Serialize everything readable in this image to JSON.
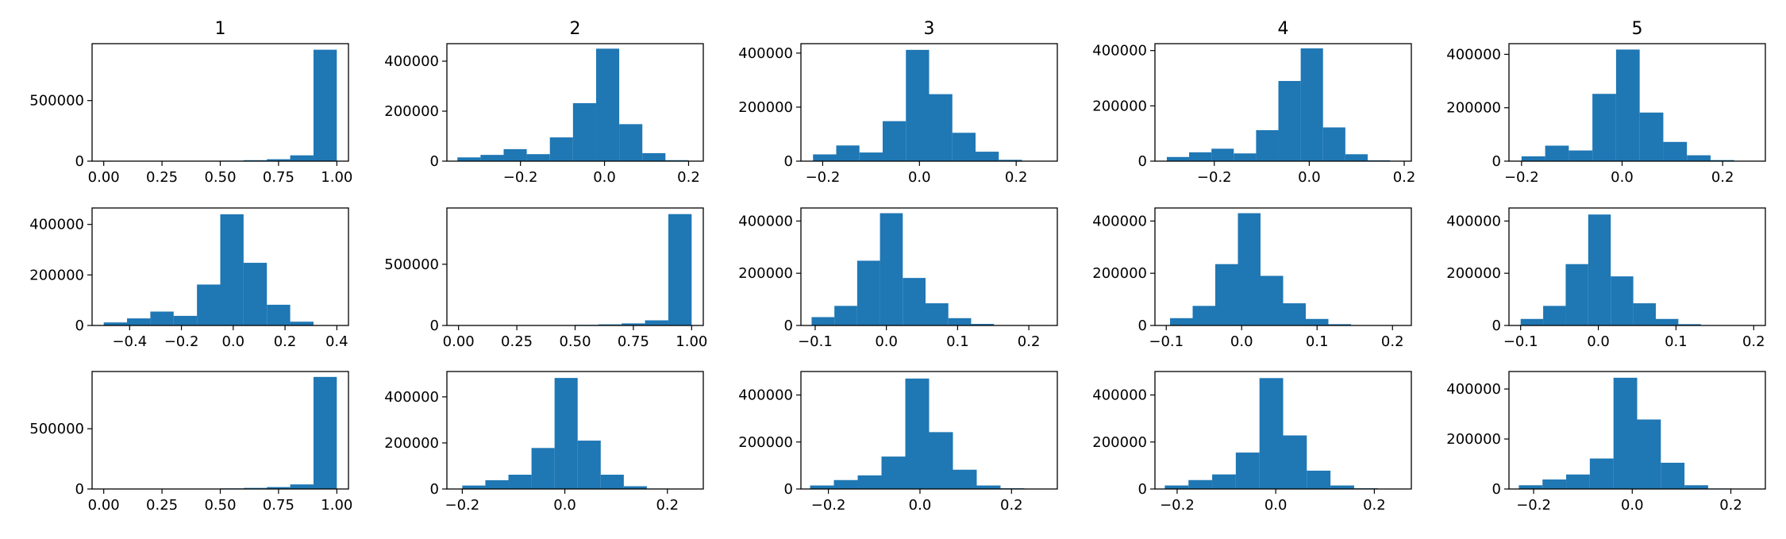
{
  "colors": {
    "bar": "#1f77b4",
    "axes": "#000000",
    "background": "#ffffff"
  },
  "column_titles": [
    "1",
    "2",
    "3",
    "4",
    "5"
  ],
  "chart_data": [
    {
      "type": "bar",
      "title": "1",
      "xlim": [
        -0.05,
        1.05
      ],
      "xticks": [
        0.0,
        0.25,
        0.5,
        0.75,
        1.0
      ],
      "xtick_labels": [
        "0.00",
        "0.25",
        "0.50",
        "0.75",
        "1.00"
      ],
      "ylim": [
        0,
        970000
      ],
      "yticks": [
        0,
        500000
      ],
      "ytick_labels": [
        "0",
        "500000"
      ],
      "bin_edges": [
        0.0,
        0.1,
        0.2,
        0.3,
        0.4,
        0.5,
        0.6,
        0.7,
        0.8,
        0.9,
        1.0
      ],
      "values": [
        500,
        500,
        1000,
        1500,
        2500,
        4000,
        8000,
        16000,
        48000,
        920000
      ]
    },
    {
      "type": "bar",
      "title": "2",
      "xlim": [
        -0.375,
        0.235
      ],
      "xticks": [
        -0.2,
        0.0,
        0.2
      ],
      "xtick_labels": [
        "−0.2",
        "0.0",
        "0.2"
      ],
      "ylim": [
        0,
        470000
      ],
      "yticks": [
        0,
        200000,
        400000
      ],
      "ytick_labels": [
        "0",
        "200000",
        "400000"
      ],
      "bin_edges": [
        -0.35,
        -0.295,
        -0.24,
        -0.185,
        -0.13,
        -0.075,
        -0.02,
        0.035,
        0.09,
        0.145,
        0.2
      ],
      "values": [
        15000,
        25000,
        48000,
        28000,
        95000,
        232000,
        450000,
        148000,
        32000,
        4000
      ]
    },
    {
      "type": "bar",
      "title": "3",
      "xlim": [
        -0.245,
        0.285
      ],
      "xticks": [
        -0.2,
        0.0,
        0.2
      ],
      "xtick_labels": [
        "−0.2",
        "0.0",
        "0.2"
      ],
      "ylim": [
        0,
        435000
      ],
      "yticks": [
        0,
        200000,
        400000
      ],
      "ytick_labels": [
        "0",
        "200000",
        "400000"
      ],
      "bin_edges": [
        -0.22,
        -0.172,
        -0.124,
        -0.076,
        -0.028,
        0.02,
        0.068,
        0.116,
        0.164,
        0.212,
        0.26
      ],
      "values": [
        25000,
        58000,
        32000,
        148000,
        412000,
        248000,
        105000,
        35000,
        5000,
        1000
      ]
    },
    {
      "type": "bar",
      "title": "4",
      "xlim": [
        -0.325,
        0.215
      ],
      "xticks": [
        -0.2,
        0.0,
        0.2
      ],
      "xtick_labels": [
        "−0.2",
        "0.0",
        "0.2"
      ],
      "ylim": [
        0,
        425000
      ],
      "yticks": [
        0,
        200000,
        400000
      ],
      "ytick_labels": [
        "0",
        "200000",
        "400000"
      ],
      "bin_edges": [
        -0.3,
        -0.253,
        -0.206,
        -0.159,
        -0.112,
        -0.065,
        -0.018,
        0.029,
        0.076,
        0.123,
        0.17
      ],
      "values": [
        15000,
        32000,
        45000,
        28000,
        112000,
        290000,
        408000,
        122000,
        25000,
        3000
      ]
    },
    {
      "type": "bar",
      "title": "5",
      "xlim": [
        -0.225,
        0.285
      ],
      "xticks": [
        -0.2,
        0.0,
        0.2
      ],
      "xtick_labels": [
        "−0.2",
        "0.0",
        "0.2"
      ],
      "ylim": [
        0,
        440000
      ],
      "yticks": [
        0,
        200000,
        400000
      ],
      "ytick_labels": [
        "0",
        "200000",
        "400000"
      ],
      "bin_edges": [
        -0.2,
        -0.153,
        -0.106,
        -0.059,
        -0.012,
        0.035,
        0.082,
        0.129,
        0.176,
        0.223,
        0.27
      ],
      "values": [
        18000,
        58000,
        40000,
        252000,
        418000,
        182000,
        72000,
        22000,
        4000,
        500
      ]
    },
    {
      "type": "bar",
      "title": "",
      "xlim": [
        -0.545,
        0.445
      ],
      "xticks": [
        -0.4,
        -0.2,
        0.0,
        0.2,
        0.4
      ],
      "xtick_labels": [
        "−0.4",
        "−0.2",
        "0.0",
        "0.2",
        "0.4"
      ],
      "ylim": [
        0,
        465000
      ],
      "yticks": [
        0,
        200000,
        400000
      ],
      "ytick_labels": [
        "0",
        "200000",
        "400000"
      ],
      "bin_edges": [
        -0.5,
        -0.41,
        -0.32,
        -0.23,
        -0.14,
        -0.05,
        0.04,
        0.13,
        0.22,
        0.31,
        0.4
      ],
      "values": [
        12000,
        28000,
        55000,
        38000,
        162000,
        440000,
        248000,
        82000,
        15000,
        1500
      ]
    },
    {
      "type": "bar",
      "title": "",
      "xlim": [
        -0.05,
        1.05
      ],
      "xticks": [
        0.0,
        0.25,
        0.5,
        0.75,
        1.0
      ],
      "xtick_labels": [
        "0.00",
        "0.25",
        "0.50",
        "0.75",
        "1.00"
      ],
      "ylim": [
        0,
        960000
      ],
      "yticks": [
        0,
        500000
      ],
      "ytick_labels": [
        "0",
        "500000"
      ],
      "bin_edges": [
        0.0,
        0.1,
        0.2,
        0.3,
        0.4,
        0.5,
        0.6,
        0.7,
        0.8,
        0.9,
        1.0
      ],
      "values": [
        500,
        500,
        1000,
        2000,
        3000,
        5000,
        9000,
        17000,
        42000,
        910000
      ]
    },
    {
      "type": "bar",
      "title": "",
      "xlim": [
        -0.12,
        0.24
      ],
      "xticks": [
        -0.1,
        0.0,
        0.1,
        0.2
      ],
      "xtick_labels": [
        "−0.1",
        "0.0",
        "0.1",
        "0.2"
      ],
      "ylim": [
        0,
        450000
      ],
      "yticks": [
        0,
        200000,
        400000
      ],
      "ytick_labels": [
        "0",
        "200000",
        "400000"
      ],
      "bin_edges": [
        -0.105,
        -0.073,
        -0.041,
        -0.009,
        0.023,
        0.055,
        0.087,
        0.119,
        0.151,
        0.183,
        0.215
      ],
      "values": [
        32000,
        75000,
        248000,
        430000,
        182000,
        85000,
        28000,
        6000,
        1000,
        200
      ]
    },
    {
      "type": "bar",
      "title": "",
      "xlim": [
        -0.115,
        0.225
      ],
      "xticks": [
        -0.1,
        0.0,
        0.1,
        0.2
      ],
      "xtick_labels": [
        "−0.1",
        "0.0",
        "0.1",
        "0.2"
      ],
      "ylim": [
        0,
        450000
      ],
      "yticks": [
        0,
        200000,
        400000
      ],
      "ytick_labels": [
        "0",
        "200000",
        "400000"
      ],
      "bin_edges": [
        -0.095,
        -0.065,
        -0.035,
        -0.005,
        0.025,
        0.055,
        0.085,
        0.115,
        0.145,
        0.175,
        0.205
      ],
      "values": [
        28000,
        75000,
        235000,
        430000,
        190000,
        85000,
        25000,
        5000,
        1000,
        200
      ]
    },
    {
      "type": "bar",
      "title": "",
      "xlim": [
        -0.115,
        0.215
      ],
      "xticks": [
        -0.1,
        0.0,
        0.1,
        0.2
      ],
      "xtick_labels": [
        "−0.1",
        "0.0",
        "0.1",
        "0.2"
      ],
      "ylim": [
        0,
        450000
      ],
      "yticks": [
        0,
        200000,
        400000
      ],
      "ytick_labels": [
        "0",
        "200000",
        "400000"
      ],
      "bin_edges": [
        -0.1,
        -0.071,
        -0.042,
        -0.013,
        0.016,
        0.045,
        0.074,
        0.103,
        0.132,
        0.161,
        0.19
      ],
      "values": [
        25000,
        75000,
        235000,
        425000,
        188000,
        85000,
        25000,
        5000,
        1000,
        200
      ]
    },
    {
      "type": "bar",
      "title": "",
      "xlim": [
        -0.05,
        1.05
      ],
      "xticks": [
        0.0,
        0.25,
        0.5,
        0.75,
        1.0
      ],
      "xtick_labels": [
        "0.00",
        "0.25",
        "0.50",
        "0.75",
        "1.00"
      ],
      "ylim": [
        0,
        975000
      ],
      "yticks": [
        0,
        500000
      ],
      "ytick_labels": [
        "0",
        "500000"
      ],
      "bin_edges": [
        0.0,
        0.1,
        0.2,
        0.3,
        0.4,
        0.5,
        0.6,
        0.7,
        0.8,
        0.9,
        1.0
      ],
      "values": [
        500,
        500,
        1000,
        1500,
        3000,
        5000,
        9000,
        16000,
        38000,
        930000
      ]
    },
    {
      "type": "bar",
      "title": "",
      "xlim": [
        -0.23,
        0.27
      ],
      "xticks": [
        -0.2,
        0.0,
        0.2
      ],
      "xtick_labels": [
        "−0.2",
        "0.0",
        "0.2"
      ],
      "ylim": [
        0,
        510000
      ],
      "yticks": [
        0,
        200000,
        400000
      ],
      "ytick_labels": [
        "0",
        "200000",
        "400000"
      ],
      "bin_edges": [
        -0.2,
        -0.155,
        -0.11,
        -0.065,
        -0.02,
        0.025,
        0.07,
        0.115,
        0.16,
        0.205,
        0.25
      ],
      "values": [
        15000,
        38000,
        62000,
        178000,
        482000,
        210000,
        62000,
        12000,
        2000,
        500
      ]
    },
    {
      "type": "bar",
      "title": "",
      "xlim": [
        -0.26,
        0.3
      ],
      "xticks": [
        -0.2,
        0.0,
        0.2
      ],
      "xtick_labels": [
        "−0.2",
        "0.0",
        "0.2"
      ],
      "ylim": [
        0,
        500000
      ],
      "yticks": [
        0,
        200000,
        400000
      ],
      "ytick_labels": [
        "0",
        "200000",
        "400000"
      ],
      "bin_edges": [
        -0.24,
        -0.188,
        -0.136,
        -0.084,
        -0.032,
        0.02,
        0.072,
        0.124,
        0.176,
        0.228,
        0.28
      ],
      "values": [
        15000,
        38000,
        58000,
        138000,
        470000,
        242000,
        82000,
        15000,
        3000,
        500
      ]
    },
    {
      "type": "bar",
      "title": "",
      "xlim": [
        -0.245,
        0.275
      ],
      "xticks": [
        -0.2,
        0.0,
        0.2
      ],
      "xtick_labels": [
        "−0.2",
        "0.0",
        "0.2"
      ],
      "ylim": [
        0,
        500000
      ],
      "yticks": [
        0,
        200000,
        400000
      ],
      "ytick_labels": [
        "0",
        "200000",
        "400000"
      ],
      "bin_edges": [
        -0.225,
        -0.177,
        -0.129,
        -0.081,
        -0.033,
        0.015,
        0.063,
        0.111,
        0.159,
        0.207,
        0.255
      ],
      "values": [
        15000,
        38000,
        62000,
        155000,
        472000,
        228000,
        78000,
        15000,
        3000,
        500
      ]
    },
    {
      "type": "bar",
      "title": "",
      "xlim": [
        -0.25,
        0.27
      ],
      "xticks": [
        -0.2,
        0.0,
        0.2
      ],
      "xtick_labels": [
        "−0.2",
        "0.0",
        "0.2"
      ],
      "ylim": [
        0,
        470000
      ],
      "yticks": [
        0,
        200000,
        400000
      ],
      "ytick_labels": [
        "0",
        "200000",
        "400000"
      ],
      "bin_edges": [
        -0.23,
        -0.182,
        -0.134,
        -0.086,
        -0.038,
        0.01,
        0.058,
        0.106,
        0.154,
        0.202,
        0.25
      ],
      "values": [
        15000,
        38000,
        58000,
        122000,
        445000,
        278000,
        105000,
        15000,
        2000,
        500
      ]
    }
  ]
}
